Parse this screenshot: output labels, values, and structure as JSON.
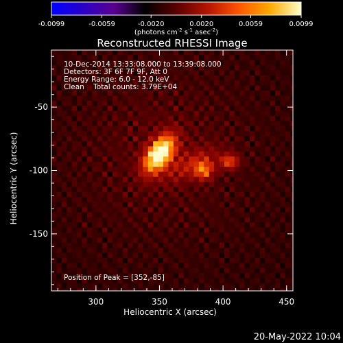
{
  "chart_data": {
    "type": "heatmap",
    "title": "Reconstructed RHESSI Image",
    "colorbar": {
      "label_prefix": "(photons cm",
      "label_exp1": "-2",
      "label_mid": " s",
      "label_exp2": "-1",
      "label_mid2": " asec",
      "label_exp3": "-2",
      "label_suffix": ")",
      "range": [
        -0.0099,
        0.0099
      ],
      "ticks": [
        "-0.0099",
        "-0.0059",
        "-0.0020",
        "0.0020",
        "0.0059",
        "0.0099"
      ],
      "colors": [
        "#0000ff",
        "#2a00c8",
        "#5a0090",
        "#000000",
        "#5a0000",
        "#b41400",
        "#ff5500",
        "#ffaa00",
        "#ffffc8"
      ]
    },
    "annotations": [
      "10-Dec-2014 13:33:08.000 to 13:39:08.000",
      "Detectors: 3F 6F 7F 9F, Att 0",
      "Energy Range: 6.0 - 12.0 keV",
      "Clean    Total counts: 3.79E+04"
    ],
    "peak_label": "Position of Peak = [352,-85]",
    "peak": [
      352,
      -85
    ],
    "xlabel": "Heliocentric X (arcsec)",
    "ylabel": "Heliocentric Y (arcsec)",
    "xlim": [
      265,
      455
    ],
    "ylim": [
      -195,
      -5
    ],
    "xticks": [
      300,
      350,
      400,
      450
    ],
    "yticks": [
      -50,
      -100,
      -150
    ],
    "sources": [
      {
        "x": 350,
        "y": -87,
        "sx": 11,
        "sy": 6,
        "angle": -55,
        "amp": 1.0
      },
      {
        "x": 385,
        "y": -100,
        "sx": 5,
        "sy": 5,
        "angle": 0,
        "amp": 0.45
      },
      {
        "x": 405,
        "y": -93,
        "sx": 5,
        "sy": 4,
        "angle": 0,
        "amp": 0.4
      },
      {
        "x": 375,
        "y": -95,
        "sx": 16,
        "sy": 7,
        "angle": -25,
        "amp": 0.22
      }
    ],
    "timestamp": "20-May-2022 10:04"
  }
}
